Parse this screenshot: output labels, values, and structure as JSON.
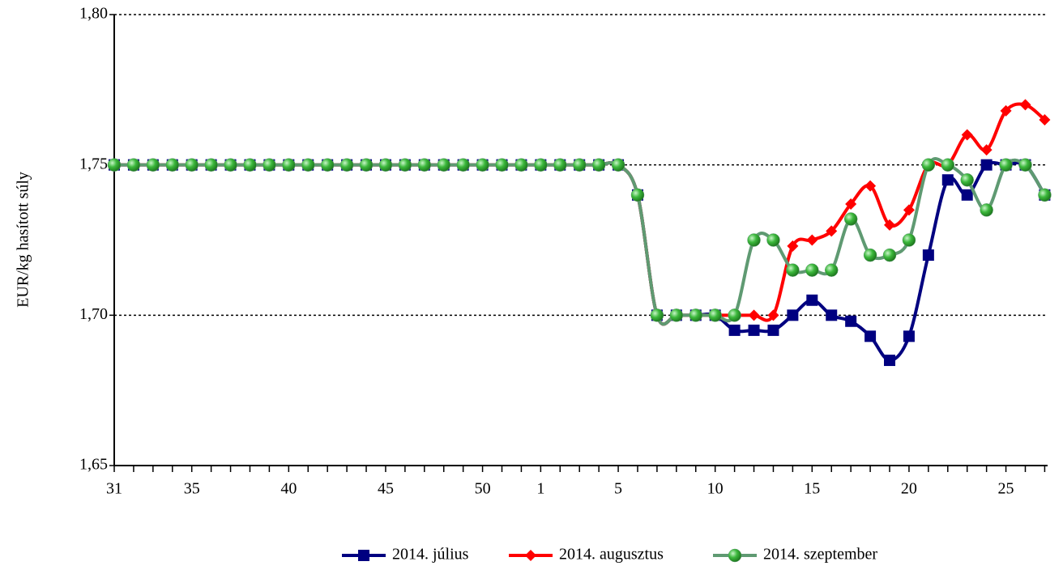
{
  "chart_data": {
    "type": "line",
    "y_label": "EUR/kg hasított súly",
    "categories": [
      "31",
      null,
      null,
      null,
      "35",
      null,
      null,
      null,
      null,
      "40",
      null,
      null,
      null,
      null,
      "45",
      null,
      null,
      null,
      null,
      "50",
      null,
      null,
      "1",
      null,
      null,
      null,
      "5",
      null,
      null,
      null,
      null,
      "10",
      null,
      null,
      null,
      null,
      "15",
      null,
      null,
      null,
      null,
      "20",
      null,
      null,
      null,
      null,
      "25",
      null,
      null
    ],
    "ylim": [
      1.65,
      1.8
    ],
    "yticks": [
      {
        "value": 1.65,
        "label": "1,65"
      },
      {
        "value": 1.7,
        "label": "1,70"
      },
      {
        "value": 1.75,
        "label": "1,75"
      },
      {
        "value": 1.8,
        "label": "1,80"
      }
    ],
    "grid": true,
    "legend": "bottom",
    "series": [
      {
        "name": "2014. július",
        "color": "#000080",
        "marker": "square",
        "values": [
          1.75,
          1.75,
          1.75,
          1.75,
          1.75,
          1.75,
          1.75,
          1.75,
          1.75,
          1.75,
          1.75,
          1.75,
          1.75,
          1.75,
          1.75,
          1.75,
          1.75,
          1.75,
          1.75,
          1.75,
          1.75,
          1.75,
          1.75,
          1.75,
          1.75,
          1.75,
          1.75,
          1.74,
          1.7,
          1.7,
          1.7,
          1.7,
          1.695,
          1.695,
          1.695,
          1.7,
          1.705,
          1.7,
          1.698,
          1.693,
          1.685,
          1.693,
          1.72,
          1.745,
          1.74,
          1.75,
          1.75,
          1.75,
          1.74
        ]
      },
      {
        "name": "2014. augusztus",
        "color": "#ff0000",
        "marker": "diamond",
        "values": [
          1.75,
          1.75,
          1.75,
          1.75,
          1.75,
          1.75,
          1.75,
          1.75,
          1.75,
          1.75,
          1.75,
          1.75,
          1.75,
          1.75,
          1.75,
          1.75,
          1.75,
          1.75,
          1.75,
          1.75,
          1.75,
          1.75,
          1.75,
          1.75,
          1.75,
          1.75,
          1.75,
          1.74,
          1.7,
          1.7,
          1.7,
          1.7,
          1.7,
          1.7,
          1.7,
          1.723,
          1.725,
          1.728,
          1.737,
          1.743,
          1.73,
          1.735,
          1.75,
          1.75,
          1.76,
          1.755,
          1.768,
          1.77,
          1.765
        ]
      },
      {
        "name": "2014. szeptember",
        "color": "#5f9a72",
        "marker": "circle",
        "values": [
          1.75,
          1.75,
          1.75,
          1.75,
          1.75,
          1.75,
          1.75,
          1.75,
          1.75,
          1.75,
          1.75,
          1.75,
          1.75,
          1.75,
          1.75,
          1.75,
          1.75,
          1.75,
          1.75,
          1.75,
          1.75,
          1.75,
          1.75,
          1.75,
          1.75,
          1.75,
          1.75,
          1.74,
          1.7,
          1.7,
          1.7,
          1.7,
          1.7,
          1.725,
          1.725,
          1.715,
          1.715,
          1.715,
          1.732,
          1.72,
          1.72,
          1.725,
          1.75,
          1.75,
          1.745,
          1.735,
          1.75,
          1.75,
          1.74
        ]
      }
    ]
  }
}
